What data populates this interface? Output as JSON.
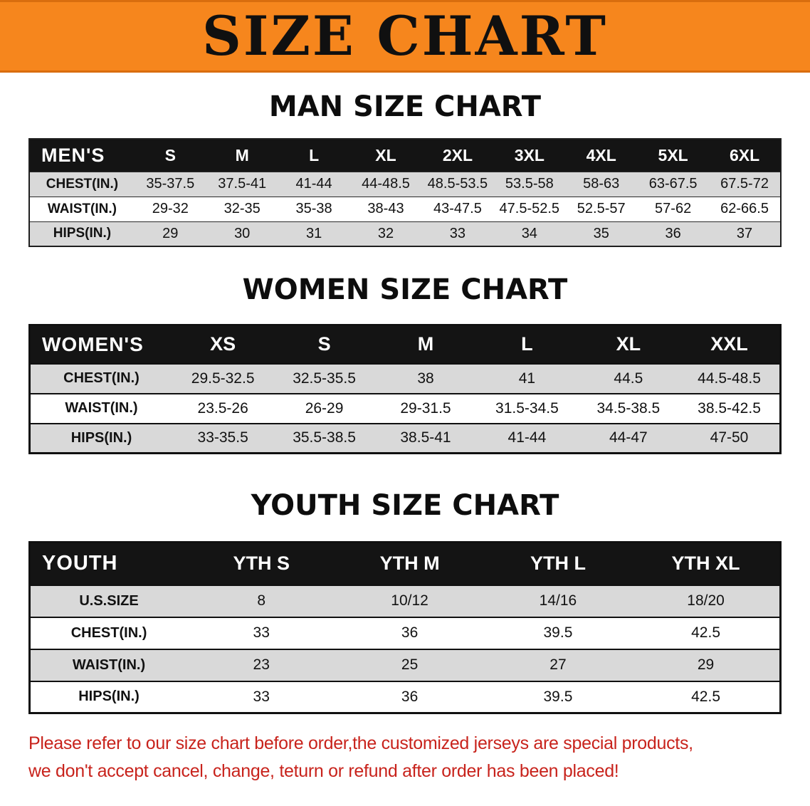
{
  "banner": {
    "title": "SIZE CHART"
  },
  "chart_data": [
    {
      "type": "table",
      "title": "MAN SIZE CHART",
      "header": [
        "MEN'S",
        "S",
        "M",
        "L",
        "XL",
        "2XL",
        "3XL",
        "4XL",
        "5XL",
        "6XL"
      ],
      "rows": [
        [
          "CHEST(IN.)",
          "35-37.5",
          "37.5-41",
          "41-44",
          "44-48.5",
          "48.5-53.5",
          "53.5-58",
          "58-63",
          "63-67.5",
          "67.5-72"
        ],
        [
          "WAIST(IN.)",
          "29-32",
          "32-35",
          "35-38",
          "38-43",
          "43-47.5",
          "47.5-52.5",
          "52.5-57",
          "57-62",
          "62-66.5"
        ],
        [
          "HIPS(IN.)",
          "29",
          "30",
          "31",
          "32",
          "33",
          "34",
          "35",
          "36",
          "37"
        ]
      ]
    },
    {
      "type": "table",
      "title": "WOMEN SIZE CHART",
      "header": [
        "WOMEN'S",
        "XS",
        "S",
        "M",
        "L",
        "XL",
        "XXL"
      ],
      "rows": [
        [
          "CHEST(IN.)",
          "29.5-32.5",
          "32.5-35.5",
          "38",
          "41",
          "44.5",
          "44.5-48.5"
        ],
        [
          "WAIST(IN.)",
          "23.5-26",
          "26-29",
          "29-31.5",
          "31.5-34.5",
          "34.5-38.5",
          "38.5-42.5"
        ],
        [
          "HIPS(IN.)",
          "33-35.5",
          "35.5-38.5",
          "38.5-41",
          "41-44",
          "44-47",
          "47-50"
        ]
      ]
    },
    {
      "type": "table",
      "title": "YOUTH SIZE CHART",
      "header": [
        "YOUTH",
        "YTH S",
        "YTH M",
        "YTH L",
        "YTH XL"
      ],
      "rows": [
        [
          "U.S.SIZE",
          "8",
          "10/12",
          "14/16",
          "18/20"
        ],
        [
          "CHEST(IN.)",
          "33",
          "36",
          "39.5",
          "42.5"
        ],
        [
          "WAIST(IN.)",
          "23",
          "25",
          "27",
          "29"
        ],
        [
          "HIPS(IN.)",
          "33",
          "36",
          "39.5",
          "42.5"
        ]
      ]
    }
  ],
  "disclaimer": {
    "lines": [
      "Please refer to our size chart before order,the customized jerseys are special products,",
      "we don't accept cancel, change, teturn or refund after order has been placed!"
    ]
  },
  "colors": {
    "banner_orange": "#f6861d",
    "table_header_black": "#141414",
    "row_stripe_gray": "#d9d9d9",
    "disclaimer_red": "#c8231c"
  }
}
